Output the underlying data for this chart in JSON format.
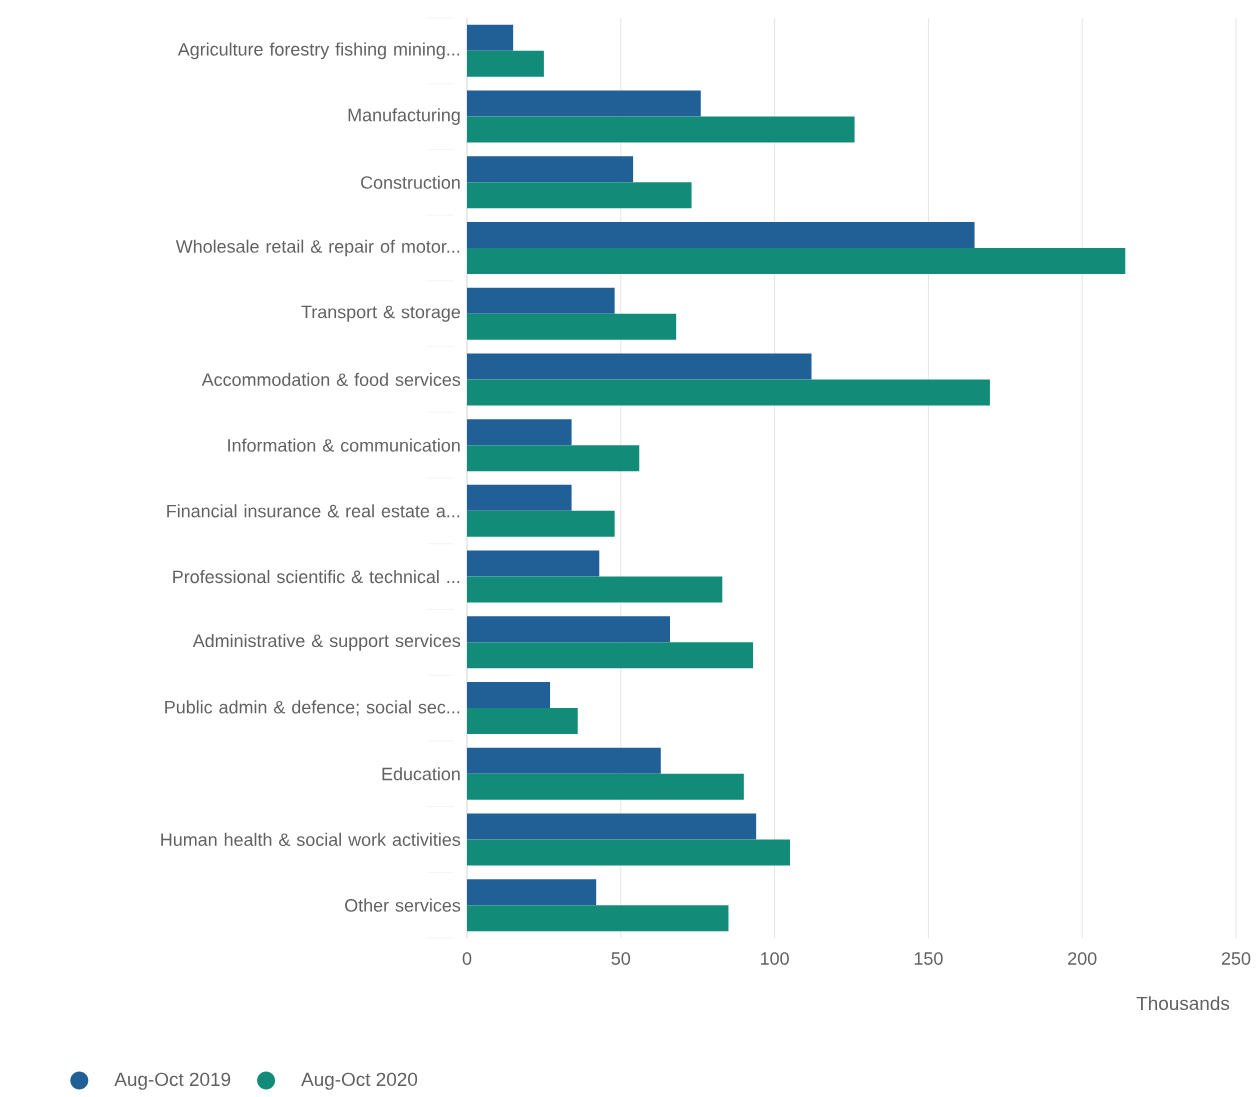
{
  "chart_data": {
    "type": "bar",
    "orientation": "horizontal",
    "categories": [
      "Agriculture forestry fishing mining...",
      "Manufacturing",
      "Construction",
      "Wholesale retail & repair of motor...",
      "Transport & storage",
      "Accommodation & food services",
      "Information & communication",
      "Financial insurance & real estate a...",
      "Professional scientific & technical ...",
      "Administrative & support services",
      "Public admin & defence; social sec...",
      "Education",
      "Human health & social work activities",
      "Other services"
    ],
    "series": [
      {
        "name": "Aug-Oct 2019",
        "color": "#215f97",
        "values": [
          15,
          76,
          54,
          165,
          48,
          112,
          34,
          34,
          43,
          66,
          27,
          63,
          94,
          42
        ]
      },
      {
        "name": "Aug-Oct 2020",
        "color": "#128c78",
        "values": [
          25,
          126,
          73,
          214,
          68,
          170,
          56,
          48,
          83,
          93,
          36,
          90,
          105,
          85
        ]
      }
    ],
    "xlabel": "Thousands",
    "xlim": [
      0,
      250
    ],
    "xticks": [
      0,
      50,
      100,
      150,
      200,
      250
    ],
    "grid": "x",
    "legend": "bottom left"
  }
}
